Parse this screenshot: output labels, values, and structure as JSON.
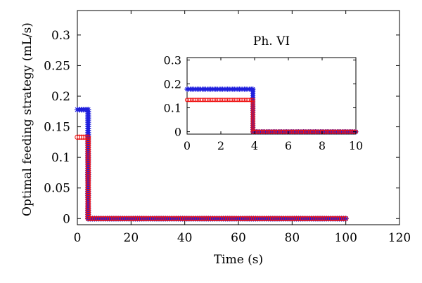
{
  "chart_data": [
    {
      "type": "scatter",
      "title": "",
      "xlabel": "Time (s)",
      "ylabel": "Optimal feeding strategy (mL/s)",
      "xlim": [
        0,
        120
      ],
      "ylim": [
        -0.01,
        0.34
      ],
      "xticks": [
        "0",
        "20",
        "40",
        "60",
        "80",
        "100",
        "120"
      ],
      "yticks": [
        "0",
        "0.05",
        "0.1",
        "0.15",
        "0.2",
        "0.25",
        "0.3"
      ],
      "grid": false,
      "series": [
        {
          "marker": "star",
          "color": "#1f1fdd",
          "segments": [
            {
              "x_start": 0,
              "x_end": 4,
              "y": 0.178
            },
            {
              "x_start": 4,
              "x_end": 100,
              "y": 0
            }
          ]
        },
        {
          "marker": "circle",
          "color": "#ee1111",
          "segments": [
            {
              "x_start": 0,
              "x_end": 4,
              "y": 0.133
            },
            {
              "x_start": 4,
              "x_end": 100,
              "y": 0
            }
          ]
        }
      ]
    },
    {
      "type": "scatter",
      "title": "Ph. VI",
      "xlim": [
        0,
        10
      ],
      "ylim": [
        -0.01,
        0.31
      ],
      "xticks": [
        "0",
        "2",
        "4",
        "6",
        "8",
        "10"
      ],
      "yticks": [
        "0",
        "0.1",
        "0.2",
        "0.3"
      ],
      "grid": false,
      "series": [
        {
          "marker": "star",
          "color": "#1f1fdd",
          "segments": [
            {
              "x_start": 0,
              "x_end": 3.9,
              "y": 0.178
            },
            {
              "x_start": 3.9,
              "x_end": 10,
              "y": 0
            }
          ]
        },
        {
          "marker": "circle",
          "color": "#ee1111",
          "segments": [
            {
              "x_start": 0,
              "x_end": 3.9,
              "y": 0.133
            },
            {
              "x_start": 3.9,
              "x_end": 10,
              "y": 0
            }
          ]
        }
      ]
    }
  ]
}
